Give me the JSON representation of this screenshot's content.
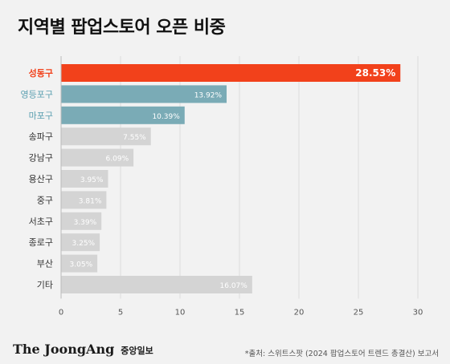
{
  "title": "지역별 팝업스토어 오픈 비중",
  "footer": {
    "brand": "The JoongAng",
    "brand_sub": "중앙일보",
    "source": "*출처: 스위트스팟 (2024 팝업스토어 트렌드 총결산) 보고서"
  },
  "colors": {
    "highlight": "#f2411b",
    "secondary": "#7aabb6",
    "default": "#d4d4d4",
    "highlight_label": "#f2411b",
    "secondary_label": "#5a9fb0",
    "default_label": "#333333"
  },
  "chart_data": {
    "type": "bar",
    "orientation": "horizontal",
    "categories": [
      "성동구",
      "영등포구",
      "마포구",
      "송파구",
      "강남구",
      "용산구",
      "중구",
      "서초구",
      "종로구",
      "부산",
      "기타"
    ],
    "values": [
      28.53,
      13.92,
      10.39,
      7.55,
      6.09,
      3.95,
      3.81,
      3.39,
      3.25,
      3.05,
      16.07
    ],
    "value_labels": [
      "28.53%",
      "13.92%",
      "10.39%",
      "7.55%",
      "6.09%",
      "3.95%",
      "3.81%",
      "3.39%",
      "3.25%",
      "3.05%",
      "16.07%"
    ],
    "color_groups": [
      "highlight",
      "secondary",
      "secondary",
      "default",
      "default",
      "default",
      "default",
      "default",
      "default",
      "default",
      "default"
    ],
    "xlim": [
      0,
      30
    ],
    "xticks": [
      0,
      5,
      10,
      15,
      20,
      25,
      30
    ],
    "xtick_labels": [
      "0",
      "5",
      "10",
      "15",
      "20",
      "25",
      "30"
    ],
    "grid": true
  }
}
